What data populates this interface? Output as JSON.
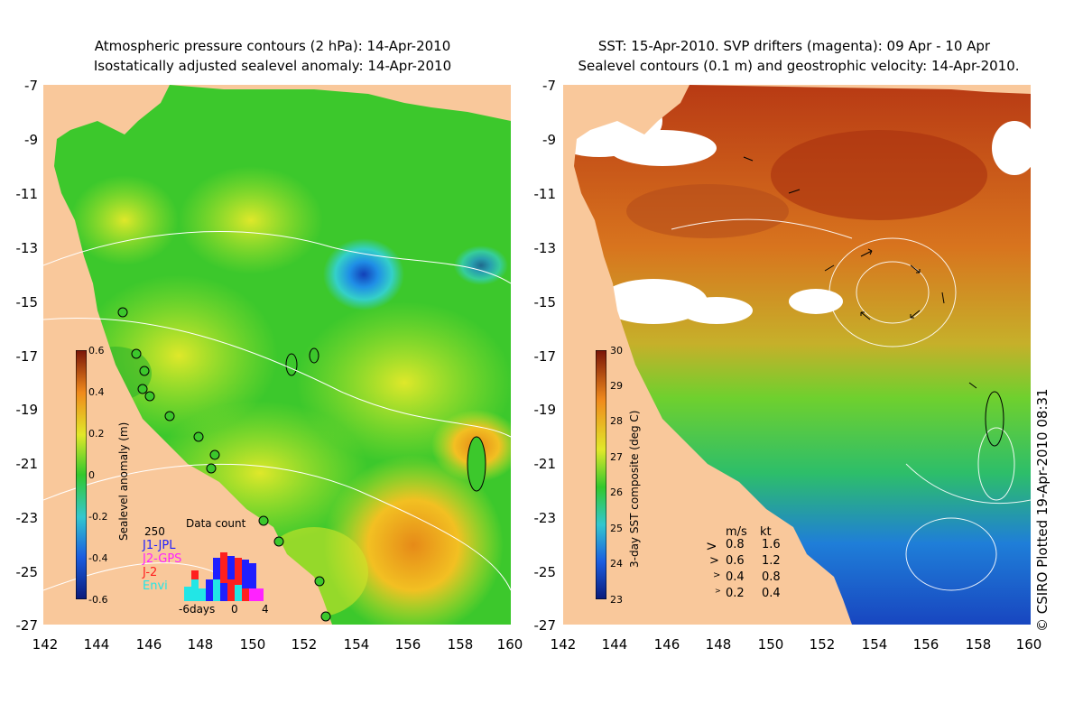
{
  "left_panel": {
    "title_line1": "Atmospheric pressure contours (2 hPa): 14-Apr-2010",
    "title_line2": "Isostatically adjusted sealevel anomaly: 14-Apr-2010",
    "colorbar_label": "Sealevel anomaly (m)",
    "colorbar_ticks": [
      "0.6",
      "0.4",
      "0.2",
      "0",
      "-0.2",
      "-0.4",
      "-0.6"
    ],
    "data_count": {
      "title": "Data count",
      "max_label": "250",
      "series": [
        {
          "name": "J1-JPL",
          "color": "#1f1fff"
        },
        {
          "name": "J2-GPS",
          "color": "#ff22ff"
        },
        {
          "name": "J-2",
          "color": "#ff1f1f"
        },
        {
          "name": "Envi",
          "color": "#22e6e6"
        }
      ],
      "x_labels": [
        "-6days",
        "0",
        "4"
      ]
    }
  },
  "right_panel": {
    "title_line1": "SST: 15-Apr-2010. SVP drifters (magenta): 09 Apr - 10 Apr",
    "title_line2": "Sealevel contours (0.1 m) and geostrophic velocity: 14-Apr-2010.",
    "colorbar_label": "3-day SST composite (deg C)",
    "colorbar_ticks": [
      "30",
      "29",
      "28",
      "27",
      "26",
      "25",
      "24",
      "23"
    ],
    "velocity_legend": {
      "header_ms": "m/s",
      "header_kt": "kt",
      "rows": [
        {
          "ms": "0.8",
          "kt": "1.6"
        },
        {
          "ms": "0.6",
          "kt": "1.2"
        },
        {
          "ms": "0.4",
          "kt": "0.8"
        },
        {
          "ms": "0.2",
          "kt": "0.4"
        }
      ]
    }
  },
  "axes": {
    "y_ticks": [
      "-7",
      "-9",
      "-11",
      "-13",
      "-15",
      "-17",
      "-19",
      "-21",
      "-23",
      "-25",
      "-27"
    ],
    "x_ticks": [
      "142",
      "144",
      "146",
      "148",
      "150",
      "152",
      "154",
      "156",
      "158",
      "160"
    ]
  },
  "credit": "© CSIRO Plotted 19-Apr-2010 08:31",
  "colors": {
    "land": "#f9c89b",
    "ocean_base": "#35c92a"
  }
}
